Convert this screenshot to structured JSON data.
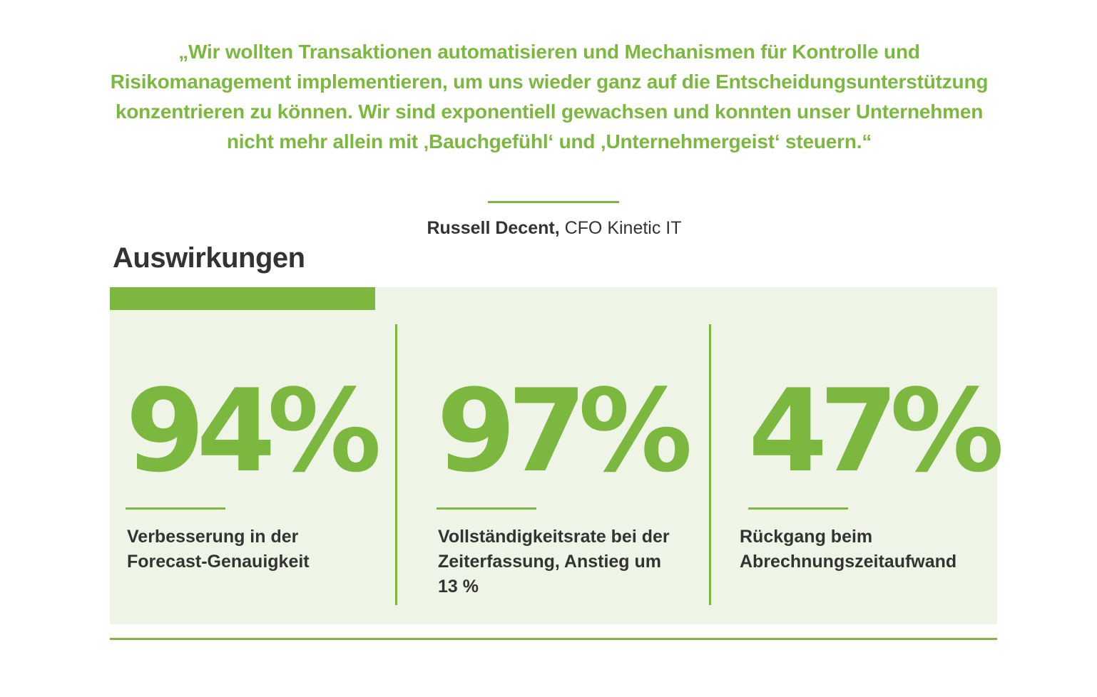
{
  "quote": {
    "text": "„Wir wollten Transaktionen automatisieren und Mechanismen für Kontrolle und Risikomanagement implementieren, um uns wieder ganz auf die Entscheidungsunterstützung konzentrieren zu können. Wir sind exponentiell gewachsen und konnten unser Unternehmen nicht mehr allein mit ‚Bauchgefühl‘ und ‚Unternehmergeist‘ steuern.“",
    "author_name": "Russell Decent,",
    "author_role": " CFO Kinetic IT"
  },
  "section": {
    "title": "Auswirkungen"
  },
  "stats": [
    {
      "value": "94%",
      "label": "Verbesserung in der Forecast-Genauigkeit"
    },
    {
      "value": "97%",
      "label": "Vollständigkeitsrate bei der Zeiterfassung, Anstieg um 13 %"
    },
    {
      "value": "47%",
      "label": "Rückgang beim Abrechnungszeitaufwand"
    }
  ],
  "colors": {
    "accent": "#7cb83f",
    "panel": "#eef5e6",
    "text": "#333333"
  }
}
